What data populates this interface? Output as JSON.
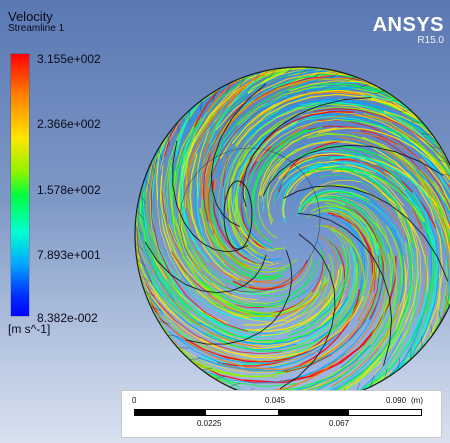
{
  "legend": {
    "variable": "Velocity",
    "object": "Streamline 1",
    "ticks": [
      "3.155e+002",
      "2.366e+002",
      "1.578e+002",
      "7.893e+001",
      "8.382e-002"
    ],
    "units": "[m s^-1]",
    "colormap": [
      "#ff0000",
      "#ff7a00",
      "#ffe600",
      "#8ff200",
      "#00ff40",
      "#00ffd0",
      "#00a8ff",
      "#0030ff",
      "#0000ff"
    ]
  },
  "logo": {
    "name": "ANSYS",
    "version": "R15.0"
  },
  "scalebar": {
    "top_labels": [
      "0",
      "0.045",
      "0.090"
    ],
    "unit": "(m)",
    "bottom_labels": [
      "0.0225",
      "0.067"
    ]
  },
  "colors": {
    "background_top": "#5a78b3",
    "background_bottom": "#d9e1ef",
    "wireframe": "#1a1a2a"
  }
}
